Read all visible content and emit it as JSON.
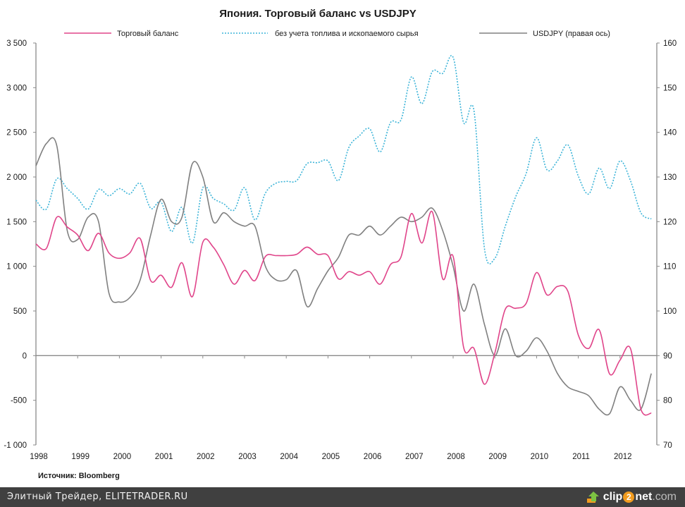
{
  "chart_data": {
    "type": "line",
    "title": "Япония. Торговый баланс vs USDJPY",
    "source": "Источник: Bloomberg",
    "x_ticks": [
      "1998",
      "1999",
      "2000",
      "2001",
      "2002",
      "2003",
      "2004",
      "2005",
      "2006",
      "2007",
      "2008",
      "2009",
      "2010",
      "2011",
      "2012"
    ],
    "left_axis": {
      "range": [
        -1000,
        3500
      ],
      "ticks": [
        "-1 000",
        "-500",
        "0",
        "500",
        "1 000",
        "1 500",
        "2 000",
        "2 500",
        "3 000",
        "3 500"
      ],
      "tick_values": [
        -1000,
        -500,
        0,
        500,
        1000,
        1500,
        2000,
        2500,
        3000,
        3500
      ]
    },
    "right_axis": {
      "range": [
        70,
        160
      ],
      "ticks": [
        "70",
        "80",
        "90",
        "100",
        "110",
        "120",
        "130",
        "140",
        "150",
        "160"
      ],
      "tick_values": [
        70,
        80,
        90,
        100,
        110,
        120,
        130,
        140,
        150,
        160
      ]
    },
    "legend_position": "top",
    "x": [
      1998.0,
      1998.25,
      1998.5,
      1998.75,
      1999.0,
      1999.25,
      1999.5,
      1999.75,
      2000.0,
      2000.25,
      2000.5,
      2000.75,
      2001.0,
      2001.25,
      2001.5,
      2001.75,
      2002.0,
      2002.25,
      2002.5,
      2002.75,
      2003.0,
      2003.25,
      2003.5,
      2003.75,
      2004.0,
      2004.25,
      2004.5,
      2004.75,
      2005.0,
      2005.25,
      2005.5,
      2005.75,
      2006.0,
      2006.25,
      2006.5,
      2006.75,
      2007.0,
      2007.25,
      2007.5,
      2007.75,
      2008.0,
      2008.25,
      2008.5,
      2008.75,
      2009.0,
      2009.25,
      2009.5,
      2009.75,
      2010.0,
      2010.25,
      2010.5,
      2010.75,
      2011.0,
      2011.25,
      2011.5,
      2011.75,
      2012.0,
      2012.25,
      2012.5,
      2012.75
    ],
    "series": [
      {
        "name": "Торговый баланс",
        "axis": "left",
        "color": "#e0458a",
        "style": "solid",
        "values": [
          1250,
          1200,
          1550,
          1440,
          1350,
          1175,
          1370,
          1150,
          1090,
          1150,
          1310,
          840,
          900,
          765,
          1040,
          660,
          1270,
          1215,
          1020,
          800,
          955,
          840,
          1110,
          1120,
          1120,
          1135,
          1215,
          1135,
          1120,
          860,
          940,
          900,
          940,
          800,
          1020,
          1105,
          1590,
          1260,
          1610,
          860,
          1110,
          95,
          80,
          -320,
          30,
          520,
          530,
          585,
          930,
          680,
          775,
          720,
          230,
          80,
          290,
          -205,
          -50,
          80,
          -600,
          -645
        ]
      },
      {
        "name": "без учета топлива  и ископаемого сырья",
        "axis": "left",
        "color": "#3cb4d8",
        "style": "dotted",
        "values": [
          1740,
          1640,
          1980,
          1870,
          1760,
          1640,
          1860,
          1790,
          1870,
          1810,
          1930,
          1650,
          1720,
          1390,
          1660,
          1260,
          1880,
          1760,
          1700,
          1630,
          1880,
          1520,
          1820,
          1930,
          1950,
          1960,
          2150,
          2160,
          2180,
          1960,
          2330,
          2460,
          2540,
          2280,
          2610,
          2640,
          3120,
          2820,
          3180,
          3160,
          3340,
          2610,
          2740,
          1200,
          1090,
          1450,
          1780,
          2040,
          2440,
          2080,
          2180,
          2360,
          2010,
          1810,
          2100,
          1870,
          2180,
          1960,
          1600,
          1530
        ]
      },
      {
        "name": "USDJPY (правая  ось)",
        "axis": "right",
        "color": "#808080",
        "style": "solid",
        "values": [
          132.5,
          137.5,
          137,
          118,
          116,
          121,
          120,
          104,
          102,
          103,
          107,
          117,
          125,
          120,
          121,
          133,
          130,
          120,
          122,
          120,
          119,
          119,
          110,
          107,
          107,
          109,
          101,
          105,
          109,
          112,
          117,
          117,
          119,
          117,
          119,
          121,
          120,
          121,
          123,
          118,
          110,
          100,
          106,
          97,
          90,
          96,
          90,
          91,
          94,
          91,
          86,
          83,
          82,
          81,
          78,
          77,
          83,
          80,
          78,
          86
        ]
      }
    ]
  },
  "footer": {
    "site_text": "Элитный Трейдер, ELITETRADER.RU",
    "logo_text_a": "clip",
    "logo_text_b": "2",
    "logo_text_c": "net",
    "logo_text_d": ".com"
  }
}
